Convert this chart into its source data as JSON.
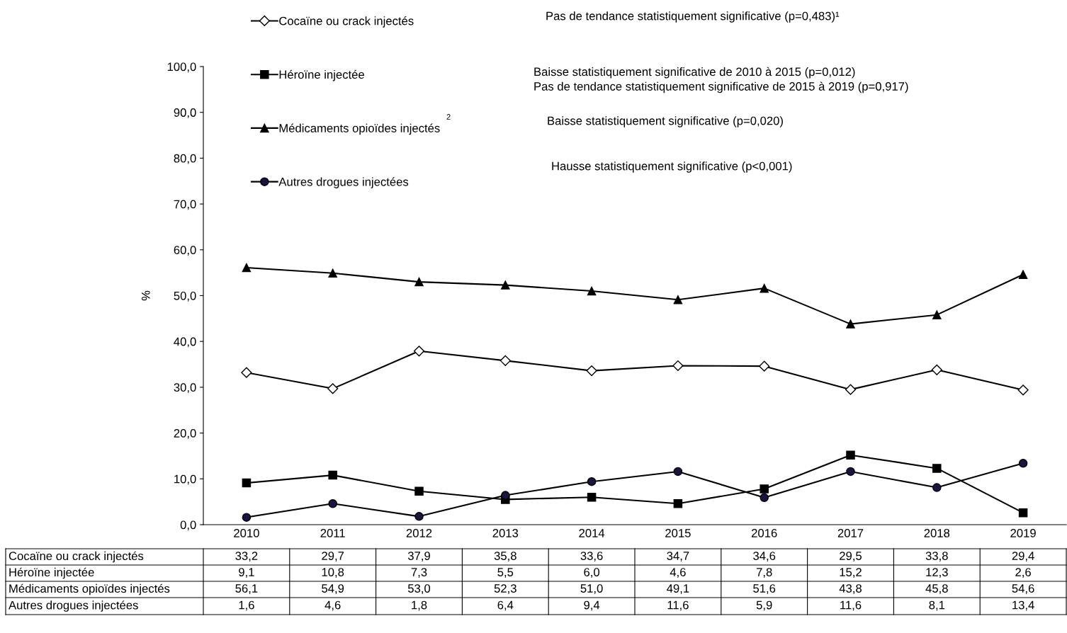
{
  "chart_data": {
    "type": "line",
    "ylabel": "%",
    "categories": [
      "2010",
      "2011",
      "2012",
      "2013",
      "2014",
      "2015",
      "2016",
      "2017",
      "2018",
      "2019"
    ],
    "series": [
      {
        "name": "Cocaïne ou crack injectés",
        "color": "#ffffff",
        "marker": "diamond",
        "values": [
          33.2,
          29.7,
          37.9,
          35.8,
          33.6,
          34.7,
          34.6,
          29.5,
          33.8,
          29.4
        ],
        "value_labels": [
          "33,2",
          "29,7",
          "37,9",
          "35,8",
          "33,6",
          "34,7",
          "34,6",
          "29,5",
          "33,8",
          "29,4"
        ]
      },
      {
        "name": "Héroïne injectée",
        "color": "#000000",
        "marker": "square",
        "values": [
          9.1,
          10.8,
          7.3,
          5.5,
          6.0,
          4.6,
          7.8,
          15.2,
          12.3,
          2.6
        ],
        "value_labels": [
          "9,1",
          "10,8",
          "7,3",
          "5,5",
          "6,0",
          "4,6",
          "7,8",
          "15,2",
          "12,3",
          "2,6"
        ]
      },
      {
        "name": "Médicaments opioïdes injectés",
        "color": "#000000",
        "marker": "triangle",
        "values": [
          56.1,
          54.9,
          53.0,
          52.3,
          51.0,
          49.1,
          51.6,
          43.8,
          45.8,
          54.6
        ],
        "value_labels": [
          "56,1",
          "54,9",
          "53,0",
          "52,3",
          "51,0",
          "49,1",
          "51,6",
          "43,8",
          "45,8",
          "54,6"
        ]
      },
      {
        "name": "Autres drogues injectées",
        "color": "#1c1440",
        "marker": "circle",
        "values": [
          1.6,
          4.6,
          1.8,
          6.4,
          9.4,
          11.6,
          5.9,
          11.6,
          8.1,
          13.4
        ],
        "value_labels": [
          "1,6",
          "4,6",
          "1,8",
          "6,4",
          "9,4",
          "11,6",
          "5,9",
          "11,6",
          "8,1",
          "13,4"
        ]
      }
    ],
    "annotations": [
      "2",
      "Pas de tendance statistiquement significative (p=0,483)¹",
      "Baisse statistiquement significative de 2010 à 2015 (p=0,012)\nPas de tendance statistiquement significative de 2015 à 2019 (p=0,917)",
      "Baisse statistiquement significative (p=0,020)",
      "Hausse statistiquement significative (p<0,001)"
    ],
    "ylim": [
      0,
      100
    ],
    "yticks": [
      {
        "value": 0,
        "label": "0,0"
      },
      {
        "value": 10,
        "label": "10,0"
      },
      {
        "value": 20,
        "label": "20,0"
      },
      {
        "value": 30,
        "label": "30,0"
      },
      {
        "value": 40,
        "label": "40,0"
      },
      {
        "value": 50,
        "label": "50,0"
      },
      {
        "value": 60,
        "label": "60,0"
      },
      {
        "value": 70,
        "label": "70,0"
      },
      {
        "value": 80,
        "label": "80,0"
      },
      {
        "value": 90,
        "label": "90,0"
      },
      {
        "value": 100,
        "label": "100,0"
      }
    ],
    "legend": "top left",
    "grid": false,
    "line_style": "solid"
  }
}
